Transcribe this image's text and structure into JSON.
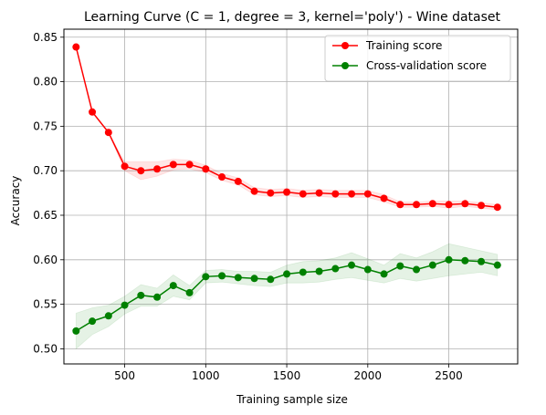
{
  "chart_data": {
    "type": "line",
    "title": "Learning Curve (C = 1, degree = 3, kernel='poly') - Wine dataset",
    "xlabel": "Training sample size",
    "ylabel": "Accuracy",
    "xlim": [
      125,
      2925
    ],
    "ylim": [
      0.483,
      0.859
    ],
    "xticks": [
      500,
      1000,
      1500,
      2000,
      2500
    ],
    "yticks": [
      0.5,
      0.55,
      0.6,
      0.65,
      0.7,
      0.75,
      0.8,
      0.85
    ],
    "grid": true,
    "legend_position": "top-right",
    "x": [
      200,
      300,
      400,
      500,
      600,
      700,
      800,
      900,
      1000,
      1100,
      1200,
      1300,
      1400,
      1500,
      1600,
      1700,
      1800,
      1900,
      2000,
      2100,
      2200,
      2300,
      2400,
      2500,
      2600,
      2700,
      2800
    ],
    "series": [
      {
        "name": "Training score",
        "color": "#ff0000",
        "values": [
          0.839,
          0.766,
          0.743,
          0.705,
          0.7,
          0.702,
          0.707,
          0.707,
          0.702,
          0.693,
          0.688,
          0.677,
          0.675,
          0.676,
          0.674,
          0.675,
          0.674,
          0.674,
          0.674,
          0.669,
          0.662,
          0.662,
          0.663,
          0.662,
          0.663,
          0.661,
          0.659
        ],
        "band": [
          0.0,
          0.0,
          0.0,
          0.005,
          0.01,
          0.008,
          0.006,
          0.005,
          0.004,
          0.004,
          0.004,
          0.004,
          0.004,
          0.004,
          0.004,
          0.004,
          0.004,
          0.004,
          0.004,
          0.004,
          0.003,
          0.003,
          0.003,
          0.004,
          0.003,
          0.003,
          0.003
        ]
      },
      {
        "name": "Cross-validation score",
        "color": "#008000",
        "values": [
          0.52,
          0.531,
          0.537,
          0.549,
          0.56,
          0.558,
          0.571,
          0.563,
          0.581,
          0.582,
          0.58,
          0.579,
          0.578,
          0.584,
          0.586,
          0.587,
          0.59,
          0.594,
          0.589,
          0.584,
          0.593,
          0.589,
          0.594,
          0.6,
          0.599,
          0.598,
          0.594
        ],
        "band": [
          0.02,
          0.015,
          0.012,
          0.01,
          0.012,
          0.01,
          0.012,
          0.008,
          0.007,
          0.007,
          0.007,
          0.008,
          0.008,
          0.01,
          0.012,
          0.012,
          0.012,
          0.014,
          0.012,
          0.01,
          0.014,
          0.013,
          0.015,
          0.018,
          0.015,
          0.012,
          0.012
        ]
      }
    ]
  }
}
